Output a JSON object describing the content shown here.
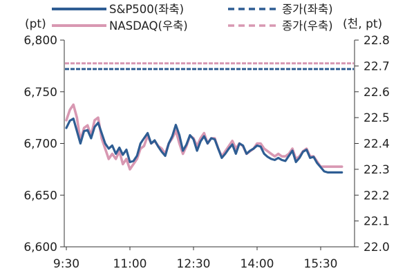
{
  "chart_data": {
    "type": "line",
    "left_unit": "(pt)",
    "right_unit": "(천, pt)",
    "x_ticks": [
      "9:30",
      "11:00",
      "12:30",
      "14:00",
      "15:30"
    ],
    "y_left": {
      "min": 6600,
      "max": 6800,
      "ticks": [
        "6,600",
        "6,650",
        "6,700",
        "6,750",
        "6,800"
      ]
    },
    "y_right": {
      "min": 22.0,
      "max": 22.8,
      "ticks": [
        "22.0",
        "22.1",
        "22.2",
        "22.3",
        "22.4",
        "22.5",
        "22.6",
        "22.7",
        "22.8"
      ]
    },
    "colors": {
      "sp500": "#2e5d93",
      "nasdaq": "#d898b2"
    },
    "legend": {
      "sp500": "S&P500(좌축)",
      "nasdaq": "NASDAQ(우축)",
      "sp500_close": "종가(좌축)",
      "nasdaq_close": "종가(우축)"
    },
    "series": [
      {
        "name": "S&P500(좌축)",
        "axis": "left",
        "time": [
          "9:30",
          "9:35",
          "9:40",
          "9:45",
          "9:50",
          "9:55",
          "10:00",
          "10:05",
          "10:10",
          "10:15",
          "10:20",
          "10:25",
          "10:30",
          "10:35",
          "10:40",
          "10:45",
          "10:50",
          "10:55",
          "11:00",
          "11:05",
          "11:10",
          "11:15",
          "11:20",
          "11:25",
          "11:30",
          "11:35",
          "11:40",
          "11:45",
          "11:50",
          "11:55",
          "12:00",
          "12:05",
          "12:10",
          "12:15",
          "12:20",
          "12:25",
          "12:30",
          "12:35",
          "12:40",
          "12:45",
          "12:50",
          "12:55",
          "13:00",
          "13:05",
          "13:10",
          "13:15",
          "13:20",
          "13:25",
          "13:30",
          "13:35",
          "13:40",
          "13:45",
          "13:50",
          "13:55",
          "14:00",
          "14:05",
          "14:10",
          "14:15",
          "14:20",
          "14:25",
          "14:30",
          "14:35",
          "14:40",
          "14:45",
          "14:50",
          "14:55",
          "15:00",
          "15:05",
          "15:10",
          "15:15",
          "15:20",
          "15:25",
          "15:30",
          "15:35",
          "15:40",
          "15:45",
          "15:50",
          "15:55",
          "16:00"
        ],
        "values": [
          6715,
          6722,
          6724,
          6712,
          6700,
          6712,
          6713,
          6705,
          6716,
          6720,
          6710,
          6700,
          6695,
          6698,
          6690,
          6696,
          6689,
          6694,
          6682,
          6683,
          6688,
          6700,
          6705,
          6710,
          6700,
          6703,
          6697,
          6692,
          6688,
          6700,
          6707,
          6718,
          6708,
          6693,
          6699,
          6708,
          6704,
          6693,
          6702,
          6707,
          6700,
          6705,
          6704,
          6695,
          6686,
          6690,
          6695,
          6699,
          6690,
          6700,
          6698,
          6690,
          6693,
          6695,
          6698,
          6697,
          6690,
          6687,
          6685,
          6684,
          6686,
          6684,
          6683,
          6688,
          6693,
          6682,
          6686,
          6692,
          6694,
          6686,
          6687,
          6681,
          6677,
          6673,
          6672,
          6672,
          6672,
          6672,
          6672
        ]
      },
      {
        "name": "NASDAQ(우축)",
        "axis": "right",
        "time": [
          "9:30",
          "9:35",
          "9:40",
          "9:45",
          "9:50",
          "9:55",
          "10:00",
          "10:05",
          "10:10",
          "10:15",
          "10:20",
          "10:25",
          "10:30",
          "10:35",
          "10:40",
          "10:45",
          "10:50",
          "10:55",
          "11:00",
          "11:05",
          "11:10",
          "11:15",
          "11:20",
          "11:25",
          "11:30",
          "11:35",
          "11:40",
          "11:45",
          "11:50",
          "11:55",
          "12:00",
          "12:05",
          "12:10",
          "12:15",
          "12:20",
          "12:25",
          "12:30",
          "12:35",
          "12:40",
          "12:45",
          "12:50",
          "12:55",
          "13:00",
          "13:05",
          "13:10",
          "13:15",
          "13:20",
          "13:25",
          "13:30",
          "13:35",
          "13:40",
          "13:45",
          "13:50",
          "13:55",
          "14:00",
          "14:05",
          "14:10",
          "14:15",
          "14:20",
          "14:25",
          "14:30",
          "14:35",
          "14:40",
          "14:45",
          "14:50",
          "14:55",
          "15:00",
          "15:05",
          "15:10",
          "15:15",
          "15:20",
          "15:25",
          "15:30",
          "15:35",
          "15:40",
          "15:45",
          "15:50",
          "15:55",
          "16:00"
        ],
        "values": [
          22.49,
          22.53,
          22.55,
          22.5,
          22.41,
          22.46,
          22.47,
          22.43,
          22.49,
          22.5,
          22.42,
          22.38,
          22.34,
          22.36,
          22.34,
          22.37,
          22.32,
          22.34,
          22.3,
          22.32,
          22.34,
          22.38,
          22.39,
          22.43,
          22.4,
          22.41,
          22.39,
          22.38,
          22.36,
          22.4,
          22.42,
          22.45,
          22.4,
          22.36,
          22.39,
          22.43,
          22.42,
          22.39,
          22.42,
          22.44,
          22.4,
          22.42,
          22.42,
          22.38,
          22.35,
          22.37,
          22.39,
          22.41,
          22.38,
          22.4,
          22.39,
          22.36,
          22.37,
          22.38,
          22.4,
          22.4,
          22.38,
          22.37,
          22.36,
          22.35,
          22.36,
          22.35,
          22.35,
          22.36,
          22.38,
          22.34,
          22.35,
          22.37,
          22.38,
          22.35,
          22.35,
          22.33,
          22.31,
          22.31,
          22.31,
          22.31,
          22.31,
          22.31,
          22.31
        ]
      }
    ],
    "close_lines": [
      {
        "name": "종가(좌축)",
        "axis": "left",
        "value": 6772
      },
      {
        "name": "종가(우축)",
        "axis": "right",
        "value": 22.71
      }
    ]
  }
}
